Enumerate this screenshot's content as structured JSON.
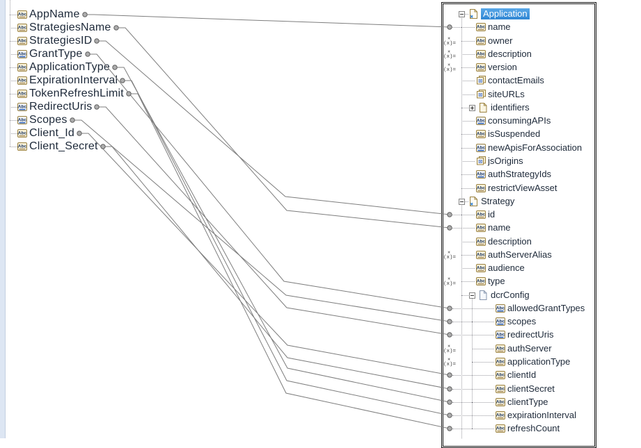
{
  "source_panel": {
    "fields": [
      {
        "label": "AppName",
        "icon": "string-icon"
      },
      {
        "label": "StrategiesName",
        "icon": "string-icon"
      },
      {
        "label": "StrategiesID",
        "icon": "string-icon"
      },
      {
        "label": "GrantType",
        "icon": "string-list-icon"
      },
      {
        "label": "ApplicationType",
        "icon": "string-icon"
      },
      {
        "label": "ExpirationInterval",
        "icon": "string-icon"
      },
      {
        "label": "TokenRefreshLimit",
        "icon": "string-icon"
      },
      {
        "label": "RedirectUris",
        "icon": "string-list-icon"
      },
      {
        "label": "Scopes",
        "icon": "string-list-icon"
      },
      {
        "label": "Client_Id",
        "icon": "string-icon"
      },
      {
        "label": "Client_Secret",
        "icon": "string-icon"
      }
    ]
  },
  "target_panel": {
    "rows": [
      {
        "label": "Application",
        "icon": "document-ref-icon",
        "depth": 0,
        "expand": "expanded",
        "selected": true,
        "dot": false,
        "setval": false
      },
      {
        "label": "name",
        "icon": "string-icon",
        "depth": 1,
        "expand": null,
        "selected": false,
        "dot": true,
        "setval": false
      },
      {
        "label": "owner",
        "icon": "string-icon",
        "depth": 1,
        "expand": null,
        "selected": false,
        "dot": false,
        "setval": true
      },
      {
        "label": "description",
        "icon": "string-icon",
        "depth": 1,
        "expand": null,
        "selected": false,
        "dot": false,
        "setval": true
      },
      {
        "label": "version",
        "icon": "string-icon",
        "depth": 1,
        "expand": null,
        "selected": false,
        "dot": false,
        "setval": true
      },
      {
        "label": "contactEmails",
        "icon": "document-list-icon",
        "depth": 1,
        "expand": null,
        "selected": false,
        "dot": false,
        "setval": false
      },
      {
        "label": "siteURLs",
        "icon": "document-list-icon",
        "depth": 1,
        "expand": null,
        "selected": false,
        "dot": false,
        "setval": false
      },
      {
        "label": "identifiers",
        "icon": "document-icon",
        "depth": 1,
        "expand": "collapsed",
        "selected": false,
        "dot": false,
        "setval": false
      },
      {
        "label": "consumingAPIs",
        "icon": "string-list-icon",
        "depth": 1,
        "expand": null,
        "selected": false,
        "dot": false,
        "setval": false
      },
      {
        "label": "isSuspended",
        "icon": "string-icon",
        "depth": 1,
        "expand": null,
        "selected": false,
        "dot": false,
        "setval": false
      },
      {
        "label": "newApisForAssociation",
        "icon": "string-list-icon",
        "depth": 1,
        "expand": null,
        "selected": false,
        "dot": false,
        "setval": false
      },
      {
        "label": "jsOrigins",
        "icon": "document-list-icon",
        "depth": 1,
        "expand": null,
        "selected": false,
        "dot": false,
        "setval": false
      },
      {
        "label": "authStrategyIds",
        "icon": "string-list-icon",
        "depth": 1,
        "expand": null,
        "selected": false,
        "dot": false,
        "setval": false
      },
      {
        "label": "restrictViewAsset",
        "icon": "string-icon",
        "depth": 1,
        "expand": null,
        "selected": false,
        "dot": false,
        "setval": false
      },
      {
        "label": "Strategy",
        "icon": "document-ref-icon",
        "depth": 0,
        "expand": "expanded",
        "selected": false,
        "dot": false,
        "setval": false
      },
      {
        "label": "id",
        "icon": "string-icon",
        "depth": 1,
        "expand": null,
        "selected": false,
        "dot": true,
        "setval": false
      },
      {
        "label": "name",
        "icon": "string-icon",
        "depth": 1,
        "expand": null,
        "selected": false,
        "dot": true,
        "setval": false
      },
      {
        "label": "description",
        "icon": "string-icon",
        "depth": 1,
        "expand": null,
        "selected": false,
        "dot": false,
        "setval": false
      },
      {
        "label": "authServerAlias",
        "icon": "string-icon",
        "depth": 1,
        "expand": null,
        "selected": false,
        "dot": false,
        "setval": true
      },
      {
        "label": "audience",
        "icon": "string-icon",
        "depth": 1,
        "expand": null,
        "selected": false,
        "dot": false,
        "setval": false
      },
      {
        "label": "type",
        "icon": "string-icon",
        "depth": 1,
        "expand": null,
        "selected": false,
        "dot": false,
        "setval": true
      },
      {
        "label": "dcrConfig",
        "icon": "document-plain-icon",
        "depth": 1,
        "expand": "expanded",
        "selected": false,
        "dot": false,
        "setval": false
      },
      {
        "label": "allowedGrantTypes",
        "icon": "string-list-icon",
        "depth": 2,
        "expand": null,
        "selected": false,
        "dot": true,
        "setval": false
      },
      {
        "label": "scopes",
        "icon": "string-list-icon",
        "depth": 2,
        "expand": null,
        "selected": false,
        "dot": true,
        "setval": false
      },
      {
        "label": "redirectUris",
        "icon": "string-list-icon",
        "depth": 2,
        "expand": null,
        "selected": false,
        "dot": true,
        "setval": false
      },
      {
        "label": "authServer",
        "icon": "string-icon",
        "depth": 2,
        "expand": null,
        "selected": false,
        "dot": false,
        "setval": true
      },
      {
        "label": "applicationType",
        "icon": "string-icon",
        "depth": 2,
        "expand": null,
        "selected": false,
        "dot": false,
        "setval": true
      },
      {
        "label": "clientId",
        "icon": "string-icon",
        "depth": 2,
        "expand": null,
        "selected": false,
        "dot": true,
        "setval": false
      },
      {
        "label": "clientSecret",
        "icon": "string-icon",
        "depth": 2,
        "expand": null,
        "selected": false,
        "dot": true,
        "setval": false
      },
      {
        "label": "clientType",
        "icon": "string-icon",
        "depth": 2,
        "expand": null,
        "selected": false,
        "dot": true,
        "setval": false
      },
      {
        "label": "expirationInterval",
        "icon": "string-icon",
        "depth": 2,
        "expand": null,
        "selected": false,
        "dot": true,
        "setval": false
      },
      {
        "label": "refreshCount",
        "icon": "string-icon",
        "depth": 2,
        "expand": null,
        "selected": false,
        "dot": true,
        "setval": false
      }
    ]
  },
  "connections": [
    {
      "from": "AppName",
      "to": "Application/name",
      "source_index": 0,
      "target_index": 1,
      "bend": null
    },
    {
      "from": "StrategiesName",
      "to": "Strategy/name",
      "source_index": 1,
      "target_index": 16,
      "bend": [
        412,
        303
      ]
    },
    {
      "from": "StrategiesID",
      "to": "Strategy/id",
      "source_index": 2,
      "target_index": 15,
      "bend": [
        410,
        283
      ]
    },
    {
      "from": "GrantType",
      "to": "Strategy/dcrConfig/allowedGrantTypes",
      "source_index": 3,
      "target_index": 22,
      "bend": [
        408,
        405
      ]
    },
    {
      "from": "ApplicationType",
      "to": "Strategy/dcrConfig/clientType",
      "source_index": 4,
      "target_index": 29,
      "bend": [
        413,
        530
      ]
    },
    {
      "from": "ExpirationInterval",
      "to": "Strategy/dcrConfig/expirationInterval",
      "source_index": 5,
      "target_index": 30,
      "bend": [
        412,
        548
      ]
    },
    {
      "from": "TokenRefreshLimit",
      "to": "Strategy/dcrConfig/refreshCount",
      "source_index": 6,
      "target_index": 31,
      "bend": [
        411,
        566
      ]
    },
    {
      "from": "RedirectUris",
      "to": "Strategy/dcrConfig/redirectUris",
      "source_index": 7,
      "target_index": 24,
      "bend": [
        412,
        443
      ]
    },
    {
      "from": "Scopes",
      "to": "Strategy/dcrConfig/scopes",
      "source_index": 8,
      "target_index": 23,
      "bend": [
        411,
        425
      ]
    },
    {
      "from": "Client_Id",
      "to": "Strategy/dcrConfig/clientId",
      "source_index": 9,
      "target_index": 27,
      "bend": [
        413,
        497
      ]
    },
    {
      "from": "Client_Secret",
      "to": "Strategy/dcrConfig/clientSecret",
      "source_index": 10,
      "target_index": 28,
      "bend": [
        413,
        515
      ]
    }
  ],
  "colors": {
    "selection_blue": "#3f92dd",
    "wire_gray": "#7d7d7d",
    "dot_fill": "#adadad",
    "dot_stroke": "#5f5f5f",
    "icon_gold": "#9b8240",
    "icon_text_navy": "#1e3a66",
    "accent_blue": "#2f62b5",
    "strip_blue": "#dde6f3",
    "panel_border": "#141414",
    "tree_dots": "#9a9aa0"
  }
}
